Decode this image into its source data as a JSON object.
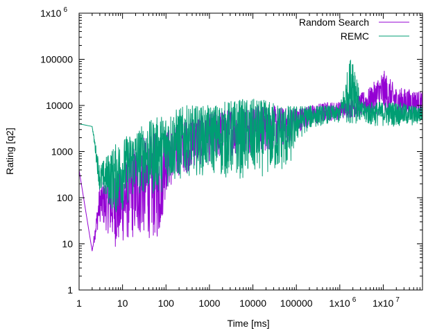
{
  "chart_data": {
    "type": "line",
    "title": "",
    "xlabel": "Time [ms]",
    "ylabel": "Rating [q2]",
    "xscale": "log",
    "yscale": "log",
    "xlim": [
      1,
      80000000
    ],
    "ylim": [
      1,
      1000000
    ],
    "grid": false,
    "legend_position": "top-right",
    "x_ticks": [
      {
        "value": 1,
        "label": "1"
      },
      {
        "value": 10,
        "label": "10"
      },
      {
        "value": 100,
        "label": "100"
      },
      {
        "value": 1000,
        "label": "1000"
      },
      {
        "value": 10000,
        "label": "10000"
      },
      {
        "value": 100000,
        "label": "100000"
      },
      {
        "value": 1000000,
        "label": "1x10",
        "exp": "6"
      },
      {
        "value": 10000000,
        "label": "1x10",
        "exp": "7"
      }
    ],
    "y_ticks": [
      {
        "value": 1,
        "label": "1"
      },
      {
        "value": 10,
        "label": "10"
      },
      {
        "value": 100,
        "label": "100"
      },
      {
        "value": 1000,
        "label": "1000"
      },
      {
        "value": 10000,
        "label": "10000"
      },
      {
        "value": 100000,
        "label": "100000"
      },
      {
        "value": 1000000,
        "label": "1x10",
        "exp": "6"
      }
    ],
    "series": [
      {
        "name": "Random Search",
        "color": "#9400d3",
        "x": [
          1,
          2,
          3,
          5,
          7,
          10,
          15,
          20,
          30,
          50,
          70,
          100,
          150,
          200,
          300,
          500,
          700,
          1000,
          2000,
          3000,
          5000,
          7000,
          10000,
          20000,
          30000,
          50000,
          70000,
          100000,
          200000,
          500000,
          1000000,
          2000000,
          3000000,
          5000000,
          10000000,
          20000000,
          50000000,
          80000000
        ],
        "y_low": [
          400,
          7,
          30,
          15,
          8,
          10,
          12,
          12,
          15,
          12,
          12,
          120,
          200,
          300,
          350,
          500,
          500,
          600,
          700,
          800,
          900,
          900,
          1000,
          1000,
          1200,
          1200,
          1500,
          2500,
          3500,
          4500,
          5000,
          5500,
          5500,
          6000,
          6000,
          6000,
          6000,
          6000
        ],
        "y_high": [
          400,
          7,
          200,
          300,
          400,
          500,
          1200,
          1500,
          2000,
          2500,
          2500,
          3000,
          3500,
          4000,
          5000,
          6000,
          7000,
          7000,
          8000,
          9000,
          10000,
          10000,
          10000,
          10000,
          10000,
          9000,
          9000,
          9000,
          10000,
          12000,
          12000,
          14000,
          18000,
          25000,
          60000,
          25000,
          22000,
          20000
        ]
      },
      {
        "name": "REMC",
        "color": "#009e73",
        "x": [
          1,
          2,
          3,
          5,
          7,
          10,
          15,
          20,
          30,
          50,
          70,
          100,
          150,
          200,
          300,
          500,
          700,
          1000,
          2000,
          3000,
          5000,
          7000,
          10000,
          20000,
          30000,
          50000,
          70000,
          100000,
          200000,
          500000,
          1000000,
          2000000,
          3000000,
          5000000,
          10000000,
          20000000,
          50000000,
          80000000
        ],
        "y_low": [
          4000,
          3500,
          120,
          60,
          40,
          50,
          80,
          100,
          120,
          100,
          120,
          150,
          200,
          200,
          300,
          300,
          300,
          350,
          250,
          250,
          250,
          250,
          250,
          300,
          300,
          350,
          400,
          1500,
          3000,
          4000,
          4000,
          4000,
          4000,
          3500,
          3500,
          3500,
          3500,
          4000
        ],
        "y_high": [
          4000,
          3500,
          500,
          1000,
          1500,
          2000,
          2500,
          3000,
          4000,
          5000,
          6000,
          7000,
          8000,
          9000,
          10000,
          10000,
          10000,
          10000,
          12000,
          13000,
          14000,
          14000,
          14000,
          13000,
          12000,
          11000,
          10000,
          10000,
          10000,
          10000,
          10000,
          200000,
          12000,
          12000,
          12000,
          12000,
          10000,
          10000
        ]
      }
    ]
  }
}
